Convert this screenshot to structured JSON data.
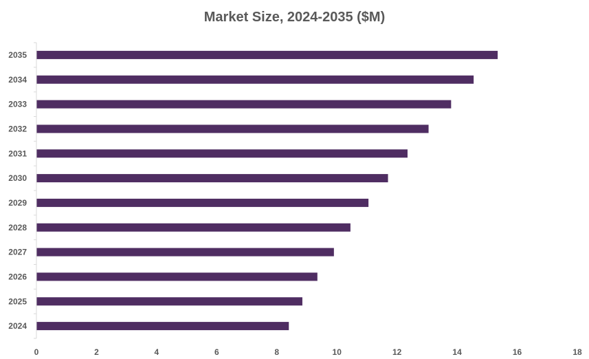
{
  "chart_data": {
    "type": "bar",
    "orientation": "horizontal",
    "title": "Market Size, 2024-2035 ($M)",
    "xlabel": "",
    "ylabel": "",
    "categories": [
      "2024",
      "2025",
      "2026",
      "2027",
      "2028",
      "2029",
      "2030",
      "2031",
      "2032",
      "2033",
      "2034",
      "2035"
    ],
    "values": [
      8.4,
      8.85,
      9.35,
      9.9,
      10.45,
      11.05,
      11.7,
      12.35,
      13.05,
      13.8,
      14.55,
      15.35
    ],
    "xlim": [
      0,
      18
    ],
    "x_ticks": [
      "0",
      "2",
      "4",
      "6",
      "8",
      "10",
      "12",
      "14",
      "16",
      "18"
    ],
    "grid": false,
    "legend": "none",
    "bar_color": "#4f2d62"
  }
}
